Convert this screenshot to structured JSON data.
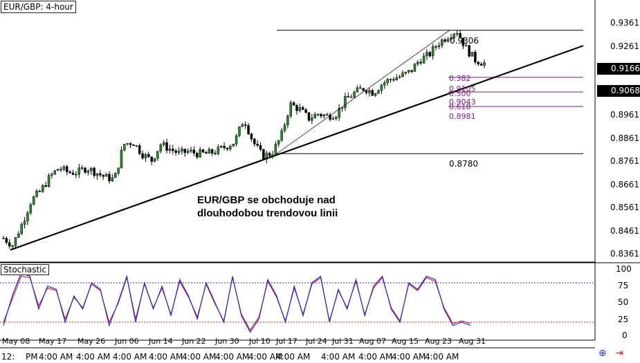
{
  "chart_title": "EUR/GBP: 4-hour",
  "indicator_title": "Stochastic",
  "annotation": [
    "EUR/GBP se obchoduje nad",
    "dlouhodobou trendovou linii"
  ],
  "price_axis": [
    "0.9361",
    "0.9261",
    "0.9068",
    "0.8961",
    "0.8861",
    "0.8761",
    "0.8661",
    "0.8561",
    "0.8461",
    "0.8361"
  ],
  "current_price": "0.9166",
  "trendline_price": "0.9068",
  "stoch_axis": [
    "100",
    "75",
    "50",
    "25",
    "0"
  ],
  "date_labels": [
    "May 08",
    "May 17",
    "May 26",
    "Jun 06",
    "Jun 14",
    "Jun 22",
    "Jun 30",
    "Jul 10",
    "Jul 17",
    "Jul 24",
    "Jul 31",
    "Aug 07",
    "Aug 15",
    "Aug 23",
    "Aug 31"
  ],
  "time_labels": [
    "12:",
    "PM",
    "4:00 AM",
    "4:00 AM",
    "4:00 AM",
    "4:00 AM",
    "4:00 AM",
    "4:00 AM",
    "4:00 AM",
    "4:00 AM",
    "4:00 AM",
    "4:00 AM",
    "4:00 AM",
    "4:00 AM"
  ],
  "levels": {
    "high": "0.9306",
    "low": "0.8780"
  },
  "fib_labels": [
    "0.382",
    "0.9105",
    "0.500",
    "0.9043",
    "0.618",
    "0.8981"
  ],
  "colors": {
    "bull": "#2d8a2d",
    "bear": "#000000",
    "fib": "#7a1a7a",
    "k": "#1f2fd0",
    "d": "#d0202a",
    "overbought": "#2a2aa8",
    "oversold": "#d02020"
  },
  "chart_data": {
    "type": "candlestick",
    "title": "EUR/GBP: 4-hour",
    "price_range": [
      0.833,
      0.942
    ],
    "close_path": [
      {
        "x": "May 08",
        "y": 0.842
      },
      {
        "x": "May 10",
        "y": 0.839
      },
      {
        "x": "May 12",
        "y": 0.848
      },
      {
        "x": "May 15",
        "y": 0.858
      },
      {
        "x": "May 17",
        "y": 0.862
      },
      {
        "x": "May 19",
        "y": 0.868
      },
      {
        "x": "May 22",
        "y": 0.872
      },
      {
        "x": "May 24",
        "y": 0.87
      },
      {
        "x": "May 26",
        "y": 0.87
      },
      {
        "x": "May 29",
        "y": 0.872
      },
      {
        "x": "May 31",
        "y": 0.87
      },
      {
        "x": "Jun 02",
        "y": 0.868
      },
      {
        "x": "Jun 06",
        "y": 0.867
      },
      {
        "x": "Jun 07",
        "y": 0.882
      },
      {
        "x": "Jun 09",
        "y": 0.883
      },
      {
        "x": "Jun 12",
        "y": 0.878
      },
      {
        "x": "Jun 14",
        "y": 0.875
      },
      {
        "x": "Jun 16",
        "y": 0.882
      },
      {
        "x": "Jun 19",
        "y": 0.88
      },
      {
        "x": "Jun 21",
        "y": 0.878
      },
      {
        "x": "Jun 22",
        "y": 0.879
      },
      {
        "x": "Jun 26",
        "y": 0.878
      },
      {
        "x": "Jun 28",
        "y": 0.878
      },
      {
        "x": "Jun 30",
        "y": 0.879
      },
      {
        "x": "Jul 03",
        "y": 0.881
      },
      {
        "x": "Jul 05",
        "y": 0.883
      },
      {
        "x": "Jul 07",
        "y": 0.893
      },
      {
        "x": "Jul 10",
        "y": 0.883
      },
      {
        "x": "Jul 12",
        "y": 0.877
      },
      {
        "x": "Jul 14",
        "y": 0.878
      },
      {
        "x": "Jul 17",
        "y": 0.885
      },
      {
        "x": "Jul 19",
        "y": 0.899
      },
      {
        "x": "Jul 21",
        "y": 0.897
      },
      {
        "x": "Jul 24",
        "y": 0.893
      },
      {
        "x": "Jul 26",
        "y": 0.895
      },
      {
        "x": "Jul 28",
        "y": 0.894
      },
      {
        "x": "Jul 31",
        "y": 0.895
      },
      {
        "x": "Aug 02",
        "y": 0.901
      },
      {
        "x": "Aug 04",
        "y": 0.904
      },
      {
        "x": "Aug 07",
        "y": 0.906
      },
      {
        "x": "Aug 09",
        "y": 0.904
      },
      {
        "x": "Aug 11",
        "y": 0.908
      },
      {
        "x": "Aug 14",
        "y": 0.91
      },
      {
        "x": "Aug 15",
        "y": 0.911
      },
      {
        "x": "Aug 17",
        "y": 0.913
      },
      {
        "x": "Aug 19",
        "y": 0.918
      },
      {
        "x": "Aug 21",
        "y": 0.92
      },
      {
        "x": "Aug 23",
        "y": 0.925
      },
      {
        "x": "Aug 24",
        "y": 0.928
      },
      {
        "x": "Aug 25",
        "y": 0.9306
      },
      {
        "x": "Aug 28",
        "y": 0.923
      },
      {
        "x": "Aug 29",
        "y": 0.918
      },
      {
        "x": "Aug 31",
        "y": 0.9166
      }
    ],
    "horizontal_levels": [
      0.9306,
      0.9105,
      0.9043,
      0.8981,
      0.878
    ],
    "trendline": {
      "from": {
        "x": "May 08",
        "y": 0.837
      },
      "to": {
        "x": "Sep 05",
        "y": 0.924
      }
    },
    "stochastic": {
      "range": [
        0,
        100
      ],
      "overbought": 80,
      "oversold": 20,
      "k": [
        15,
        60,
        95,
        90,
        40,
        75,
        70,
        20,
        60,
        40,
        80,
        70,
        15,
        50,
        90,
        20,
        80,
        40,
        75,
        30,
        85,
        60,
        25,
        80,
        50,
        20,
        90,
        30,
        5,
        25,
        85,
        60,
        20,
        75,
        30,
        80,
        90,
        20,
        70,
        40,
        85,
        30,
        75,
        90,
        40,
        20,
        80,
        70,
        90,
        85,
        40,
        15,
        20,
        15
      ],
      "d": [
        20,
        55,
        90,
        88,
        45,
        72,
        68,
        25,
        58,
        42,
        78,
        68,
        20,
        48,
        88,
        25,
        78,
        42,
        72,
        32,
        82,
        58,
        28,
        78,
        48,
        22,
        88,
        32,
        8,
        28,
        82,
        58,
        22,
        72,
        32,
        78,
        88,
        22,
        68,
        42,
        82,
        32,
        72,
        88,
        42,
        22,
        78,
        68,
        88,
        82,
        42,
        18,
        22,
        18
      ]
    }
  }
}
